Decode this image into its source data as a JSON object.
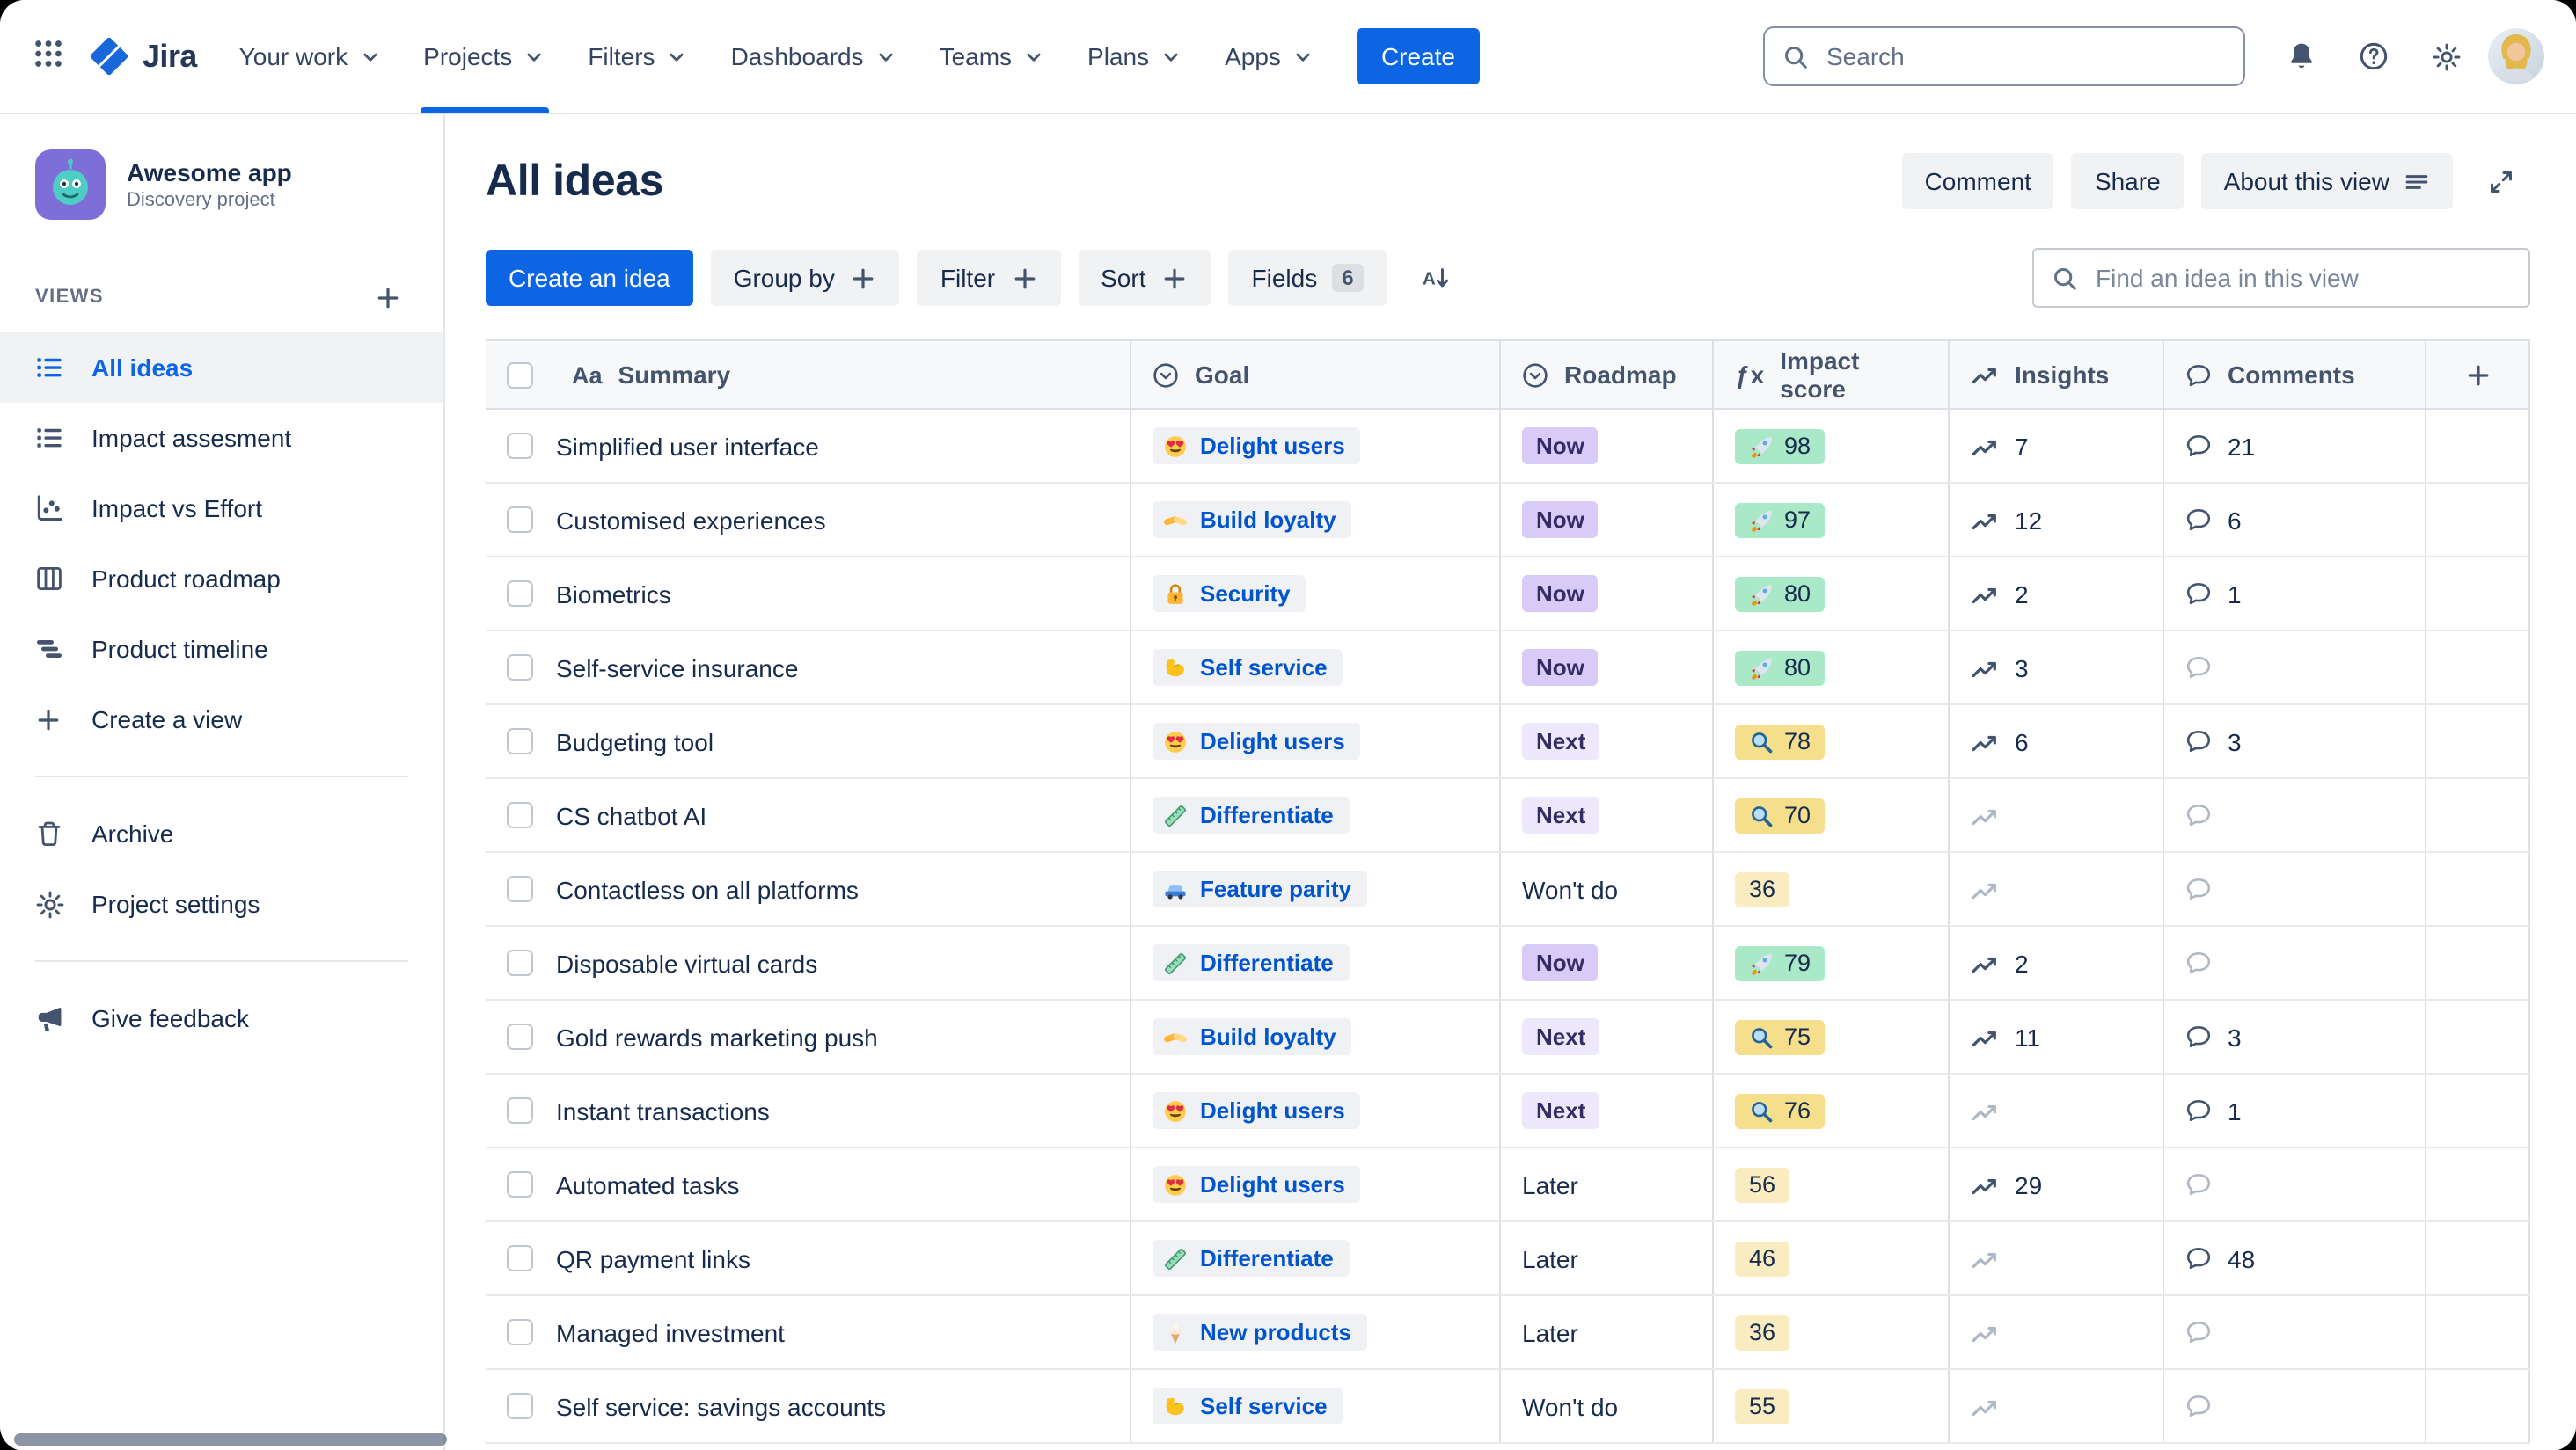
{
  "nav": {
    "logo_label": "Jira",
    "items": [
      {
        "label": "Your work",
        "active": false
      },
      {
        "label": "Projects",
        "active": true
      },
      {
        "label": "Filters",
        "active": false
      },
      {
        "label": "Dashboards",
        "active": false
      },
      {
        "label": "Teams",
        "active": false
      },
      {
        "label": "Plans",
        "active": false
      },
      {
        "label": "Apps",
        "active": false
      }
    ],
    "create_label": "Create",
    "search_placeholder": "Search"
  },
  "sidebar": {
    "project_name": "Awesome app",
    "project_subtitle": "Discovery project",
    "views_heading": "VIEWS",
    "views": [
      {
        "label": "All ideas",
        "icon": "list-view-icon",
        "selected": true
      },
      {
        "label": "Impact assesment",
        "icon": "list-view-icon",
        "selected": false
      },
      {
        "label": "Impact vs Effort",
        "icon": "scatter-chart-icon",
        "selected": false
      },
      {
        "label": "Product roadmap",
        "icon": "board-icon",
        "selected": false
      },
      {
        "label": "Product timeline",
        "icon": "timeline-icon",
        "selected": false
      },
      {
        "label": "Create a view",
        "icon": "plus-icon",
        "selected": false
      }
    ],
    "tools": [
      {
        "label": "Archive",
        "icon": "trash-icon"
      },
      {
        "label": "Project settings",
        "icon": "gear-icon"
      }
    ],
    "feedback_label": "Give feedback"
  },
  "header": {
    "title": "All ideas",
    "comment_label": "Comment",
    "share_label": "Share",
    "about_label": "About this view"
  },
  "toolbar": {
    "create_idea_label": "Create an idea",
    "group_by_label": "Group by",
    "filter_label": "Filter",
    "sort_label": "Sort",
    "fields_label": "Fields",
    "fields_count": "6",
    "find_placeholder": "Find an idea in this view"
  },
  "table": {
    "columns": [
      {
        "label": "Summary",
        "icon": "text-icon"
      },
      {
        "label": "Goal",
        "icon": "select-icon"
      },
      {
        "label": "Roadmap",
        "icon": "select-icon"
      },
      {
        "label": "Impact score",
        "icon": "formula-icon"
      },
      {
        "label": "Insights",
        "icon": "trend-icon"
      },
      {
        "label": "Comments",
        "icon": "comment-icon"
      }
    ],
    "rows": [
      {
        "summary": "Simplified user interface",
        "goal_icon": "heart-eyes-icon",
        "goal": "Delight users",
        "roadmap": "Now",
        "roadmap_style": "now",
        "impact": "98",
        "impact_icon": "rocket-icon",
        "impact_style": "high",
        "insights": "7",
        "comments": "21"
      },
      {
        "summary": "Customised experiences",
        "goal_icon": "handshake-icon",
        "goal": "Build loyalty",
        "roadmap": "Now",
        "roadmap_style": "now",
        "impact": "97",
        "impact_icon": "rocket-icon",
        "impact_style": "high",
        "insights": "12",
        "comments": "6"
      },
      {
        "summary": "Biometrics",
        "goal_icon": "lock-icon",
        "goal": "Security",
        "roadmap": "Now",
        "roadmap_style": "now",
        "impact": "80",
        "impact_icon": "rocket-icon",
        "impact_style": "high",
        "insights": "2",
        "comments": "1"
      },
      {
        "summary": "Self-service insurance",
        "goal_icon": "flex-arm-icon",
        "goal": "Self service",
        "roadmap": "Now",
        "roadmap_style": "now",
        "impact": "80",
        "impact_icon": "rocket-icon",
        "impact_style": "high",
        "insights": "3",
        "comments": null
      },
      {
        "summary": "Budgeting tool",
        "goal_icon": "heart-eyes-icon",
        "goal": "Delight users",
        "roadmap": "Next",
        "roadmap_style": "next",
        "impact": "78",
        "impact_icon": "magnifier-icon",
        "impact_style": "mid",
        "insights": "6",
        "comments": "3"
      },
      {
        "summary": "CS chatbot AI",
        "goal_icon": "ruler-icon",
        "goal": "Differentiate",
        "roadmap": "Next",
        "roadmap_style": "next",
        "impact": "70",
        "impact_icon": "magnifier-icon",
        "impact_style": "mid",
        "insights": null,
        "comments": null
      },
      {
        "summary": "Contactless on all platforms",
        "goal_icon": "car-icon",
        "goal": "Feature parity",
        "roadmap": "Won't do",
        "roadmap_style": "none",
        "impact": "36",
        "impact_icon": null,
        "impact_style": "low",
        "insights": null,
        "comments": null
      },
      {
        "summary": "Disposable virtual cards",
        "goal_icon": "ruler-icon",
        "goal": "Differentiate",
        "roadmap": "Now",
        "roadmap_style": "now",
        "impact": "79",
        "impact_icon": "rocket-icon",
        "impact_style": "high",
        "insights": "2",
        "comments": null
      },
      {
        "summary": "Gold rewards marketing push",
        "goal_icon": "handshake-icon",
        "goal": "Build loyalty",
        "roadmap": "Next",
        "roadmap_style": "next",
        "impact": "75",
        "impact_icon": "magnifier-icon",
        "impact_style": "mid",
        "insights": "11",
        "comments": "3"
      },
      {
        "summary": "Instant transactions",
        "goal_icon": "heart-eyes-icon",
        "goal": "Delight users",
        "roadmap": "Next",
        "roadmap_style": "next",
        "impact": "76",
        "impact_icon": "magnifier-icon",
        "impact_style": "mid",
        "insights": null,
        "comments": "1"
      },
      {
        "summary": "Automated tasks",
        "goal_icon": "heart-eyes-icon",
        "goal": "Delight users",
        "roadmap": "Later",
        "roadmap_style": "none",
        "impact": "56",
        "impact_icon": null,
        "impact_style": "low",
        "insights": "29",
        "comments": null
      },
      {
        "summary": "QR payment links",
        "goal_icon": "ruler-icon",
        "goal": "Differentiate",
        "roadmap": "Later",
        "roadmap_style": "none",
        "impact": "46",
        "impact_icon": null,
        "impact_style": "low",
        "insights": null,
        "comments": "48"
      },
      {
        "summary": "Managed investment",
        "goal_icon": "soft-serve-icon",
        "goal": "New products",
        "roadmap": "Later",
        "roadmap_style": "none",
        "impact": "36",
        "impact_icon": null,
        "impact_style": "low",
        "insights": null,
        "comments": null
      },
      {
        "summary": "Self service: savings accounts",
        "goal_icon": "flex-arm-icon",
        "goal": "Self service",
        "roadmap": "Won't do",
        "roadmap_style": "none",
        "impact": "55",
        "impact_icon": null,
        "impact_style": "low",
        "insights": null,
        "comments": null
      }
    ]
  },
  "colors": {
    "accent_blue": "#0C66E4",
    "goal_text_blue": "#0055CC",
    "roadmap_now_bg": "#D9CBF8",
    "roadmap_next_bg": "#EDE8FC",
    "impact_high_bg": "#A9E9C8",
    "impact_mid_bg": "#F5DE8C",
    "impact_low_bg": "#F8ECC0"
  }
}
